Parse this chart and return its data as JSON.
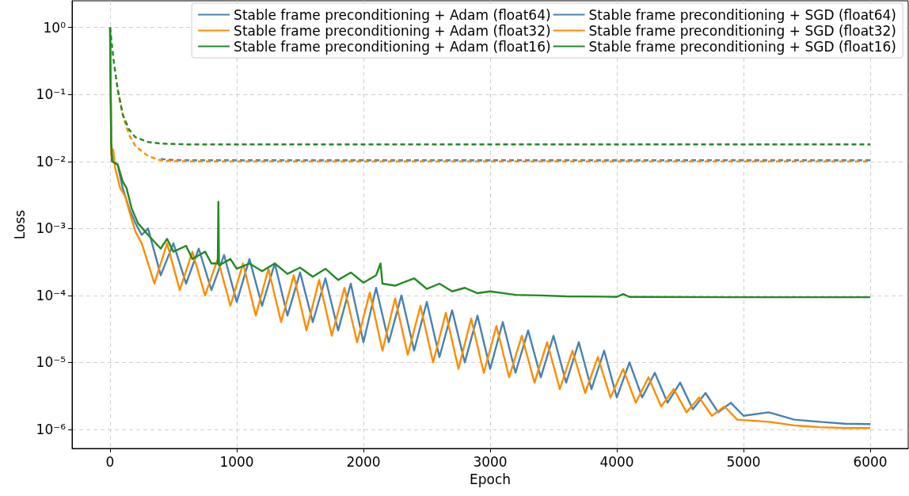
{
  "chart_data": {
    "type": "line",
    "xlabel": "Epoch",
    "ylabel": "Loss",
    "log": "y",
    "grid": true,
    "legend": "top right",
    "marker": "none",
    "xlim": [
      -300,
      6300
    ],
    "xticks": [
      0,
      1000,
      2000,
      3000,
      4000,
      5000,
      6000
    ],
    "ylim": [
      5.2e-07,
      2.5
    ],
    "yticks": [
      {
        "value": 1,
        "label": "10⁰"
      },
      {
        "value": 0.1,
        "label": "10⁻¹"
      },
      {
        "value": 0.01,
        "label": "10⁻²"
      },
      {
        "value": 0.001,
        "label": "10⁻³"
      },
      {
        "value": 0.0001,
        "label": "10⁻⁴"
      },
      {
        "value": 1e-05,
        "label": "10⁻⁵"
      },
      {
        "value": 1e-06,
        "label": "10⁻⁶"
      }
    ],
    "series": [
      {
        "name": "Stable frame preconditioning + Adam (float64)",
        "color": "#4682b4",
        "line_style": "solid",
        "x": [
          0,
          10,
          20,
          60,
          100,
          150,
          200,
          250,
          300,
          400,
          500,
          600,
          700,
          800,
          900,
          1000,
          1100,
          1200,
          1300,
          1400,
          1500,
          1600,
          1700,
          1800,
          1900,
          2000,
          2100,
          2200,
          2300,
          2400,
          2500,
          2600,
          2700,
          2800,
          2900,
          3000,
          3100,
          3200,
          3300,
          3400,
          3500,
          3600,
          3700,
          3800,
          3900,
          4000,
          4100,
          4200,
          4300,
          4400,
          4500,
          4600,
          4700,
          4800,
          4900,
          5000,
          5200,
          5400,
          5600,
          5800,
          6000
        ],
        "values": [
          1.0,
          0.02,
          0.01,
          0.009,
          0.004,
          0.002,
          0.0012,
          0.0008,
          0.001,
          0.0002,
          0.0006,
          0.00015,
          0.0005,
          0.00012,
          0.0004,
          8e-05,
          0.00035,
          7e-05,
          0.0003,
          5e-05,
          0.00022,
          4e-05,
          0.00018,
          3e-05,
          0.00015,
          2e-05,
          0.00013,
          2e-05,
          0.0001,
          1.5e-05,
          8e-05,
          1.2e-05,
          6e-05,
          1e-05,
          5e-05,
          8e-06,
          4e-05,
          7e-06,
          3e-05,
          6e-06,
          2.5e-05,
          5e-06,
          2e-05,
          4e-06,
          1.5e-05,
          3e-06,
          1e-05,
          3e-06,
          7e-06,
          2.5e-06,
          5e-06,
          2e-06,
          3.5e-06,
          1.8e-06,
          2.5e-06,
          1.6e-06,
          1.8e-06,
          1.4e-06,
          1.3e-06,
          1.22e-06,
          1.2e-06
        ]
      },
      {
        "name": "Stable frame preconditioning + Adam (float32)",
        "color": "#ff8c00",
        "line_style": "solid",
        "x": [
          0,
          10,
          25,
          40,
          80,
          120,
          160,
          200,
          250,
          350,
          450,
          550,
          650,
          750,
          850,
          950,
          1050,
          1150,
          1250,
          1350,
          1450,
          1550,
          1650,
          1750,
          1850,
          1950,
          2050,
          2150,
          2250,
          2350,
          2450,
          2550,
          2650,
          2750,
          2850,
          2950,
          3050,
          3150,
          3250,
          3350,
          3450,
          3550,
          3650,
          3750,
          3850,
          3950,
          4050,
          4150,
          4250,
          4350,
          4450,
          4550,
          4650,
          4750,
          4850,
          4950,
          5200,
          5400,
          5600,
          5800,
          6000
        ],
        "values": [
          1.0,
          0.012,
          0.015,
          0.008,
          0.004,
          0.003,
          0.0016,
          0.0009,
          0.0006,
          0.00015,
          0.0006,
          0.00012,
          0.00045,
          0.0001,
          0.00035,
          7e-05,
          0.0003,
          5e-05,
          0.00025,
          4e-05,
          0.0002,
          3e-05,
          0.00017,
          2.5e-05,
          0.00013,
          2e-05,
          0.00011,
          1.5e-05,
          9e-05,
          1.3e-05,
          7e-05,
          1e-05,
          5.5e-05,
          8e-06,
          4.5e-05,
          7e-06,
          3.5e-05,
          6e-06,
          2.5e-05,
          5e-06,
          2e-05,
          4e-06,
          1.5e-05,
          3.5e-06,
          1.2e-05,
          3e-06,
          8e-06,
          2.5e-06,
          6e-06,
          2.2e-06,
          4e-06,
          1.8e-06,
          3e-06,
          1.6e-06,
          2.2e-06,
          1.4e-06,
          1.3e-06,
          1.15e-06,
          1.08e-06,
          1.05e-06,
          1.05e-06
        ]
      },
      {
        "name": "Stable frame preconditioning + Adam (float16)",
        "color": "#228b22",
        "line_style": "solid",
        "x": [
          0,
          8,
          15,
          60,
          100,
          130,
          170,
          220,
          300,
          400,
          450,
          500,
          600,
          650,
          750,
          800,
          850,
          855,
          860,
          950,
          1000,
          1100,
          1200,
          1300,
          1400,
          1500,
          1600,
          1700,
          1800,
          1900,
          2000,
          2100,
          2135,
          2150,
          2250,
          2400,
          2500,
          2600,
          2700,
          2800,
          2900,
          3000,
          3200,
          3400,
          3600,
          3900,
          4000,
          4050,
          4100,
          5000,
          6000
        ],
        "values": [
          1.0,
          0.02,
          0.01,
          0.009,
          0.005,
          0.004,
          0.002,
          0.0012,
          0.0008,
          0.0005,
          0.0007,
          0.00045,
          0.00055,
          0.00035,
          0.00045,
          0.0003,
          0.0003,
          0.0025,
          0.00028,
          0.00035,
          0.00025,
          0.0003,
          0.00023,
          0.0003,
          0.00021,
          0.00026,
          0.00019,
          0.00025,
          0.00017,
          0.00022,
          0.000155,
          0.0002,
          0.0003,
          0.00015,
          0.00014,
          0.00018,
          0.000125,
          0.00015,
          0.000115,
          0.00013,
          0.000108,
          0.000115,
          0.000102,
          0.0001,
          9.7e-05,
          9.6e-05,
          9.5e-05,
          0.000105,
          9.5e-05,
          9.4e-05,
          9.4e-05
        ]
      },
      {
        "name": "Stable frame preconditioning + SGD (float64)",
        "color": "#4682b4",
        "line_style": "dashed",
        "x": [
          400,
          500,
          700,
          6000
        ],
        "values": [
          0.0109,
          0.0105,
          0.0104,
          0.0104
        ]
      },
      {
        "name": "Stable frame preconditioning + SGD (float32)",
        "color": "#ff8c00",
        "line_style": "dashed",
        "x": [
          60,
          100,
          150,
          200,
          300,
          400,
          500,
          700,
          6000
        ],
        "values": [
          0.12,
          0.05,
          0.025,
          0.017,
          0.012,
          0.0104,
          0.0101,
          0.01,
          0.01
        ]
      },
      {
        "name": "Stable frame preconditioning + SGD (float16)",
        "color": "#228b22",
        "line_style": "dashed",
        "x": [
          0,
          30,
          60,
          100,
          150,
          200,
          300,
          400,
          600,
          6000
        ],
        "values": [
          1.0,
          0.3,
          0.12,
          0.05,
          0.03,
          0.023,
          0.0195,
          0.0185,
          0.018,
          0.018
        ]
      }
    ]
  }
}
